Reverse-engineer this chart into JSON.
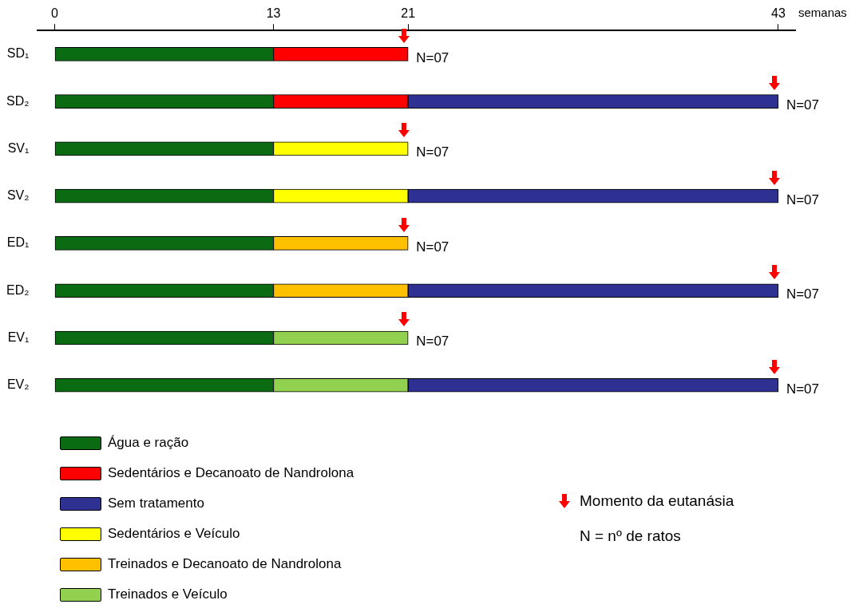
{
  "chart_data": {
    "type": "bar",
    "orientation": "horizontal",
    "stacked": true,
    "xlabel": "semanas",
    "categories": [
      "SD₁",
      "SD₂",
      "SV₁",
      "SV₂",
      "ED₁",
      "ED₂",
      "EV₁",
      "EV₂"
    ],
    "xlim": [
      -1,
      44
    ],
    "xticks": [
      0,
      13,
      21,
      43
    ],
    "series": [
      {
        "name": "Água e ração",
        "color": "#0b6b12",
        "values": [
          13,
          13,
          13,
          13,
          13,
          13,
          13,
          13
        ]
      },
      {
        "name": "Sedentários e Decanoato de Nandrolona",
        "color": "#ff0000",
        "values": [
          8,
          8,
          null,
          null,
          null,
          null,
          null,
          null
        ]
      },
      {
        "name": "Sem tratamento",
        "color": "#2e3192",
        "values": [
          null,
          22,
          null,
          null,
          null,
          null,
          null,
          null
        ]
      },
      {
        "name": "Sedentários e Veículo",
        "color": "#ffff00",
        "values": [
          null,
          null,
          8,
          8,
          null,
          null,
          null,
          null
        ]
      },
      {
        "name": "Treinados e Decanoato de Nandrolona",
        "color": "#ffc000",
        "values": [
          null,
          null,
          null,
          null,
          8,
          8,
          null,
          null
        ]
      },
      {
        "name": "Treinados e Veículo",
        "color": "#92d050",
        "values": [
          null,
          null,
          null,
          null,
          null,
          null,
          8,
          8
        ]
      },
      {
        "color": "#2e3192",
        "values": [
          null,
          null,
          null,
          22,
          null,
          22,
          null,
          22
        ]
      }
    ],
    "legend": "bottom left",
    "annotations": [
      "N=07",
      "N=07",
      "N=07",
      "N=07",
      "N=07",
      "N=07",
      "N=07",
      "N=07",
      "Momento da eutanásia",
      "N = nº de ratos"
    ]
  }
}
